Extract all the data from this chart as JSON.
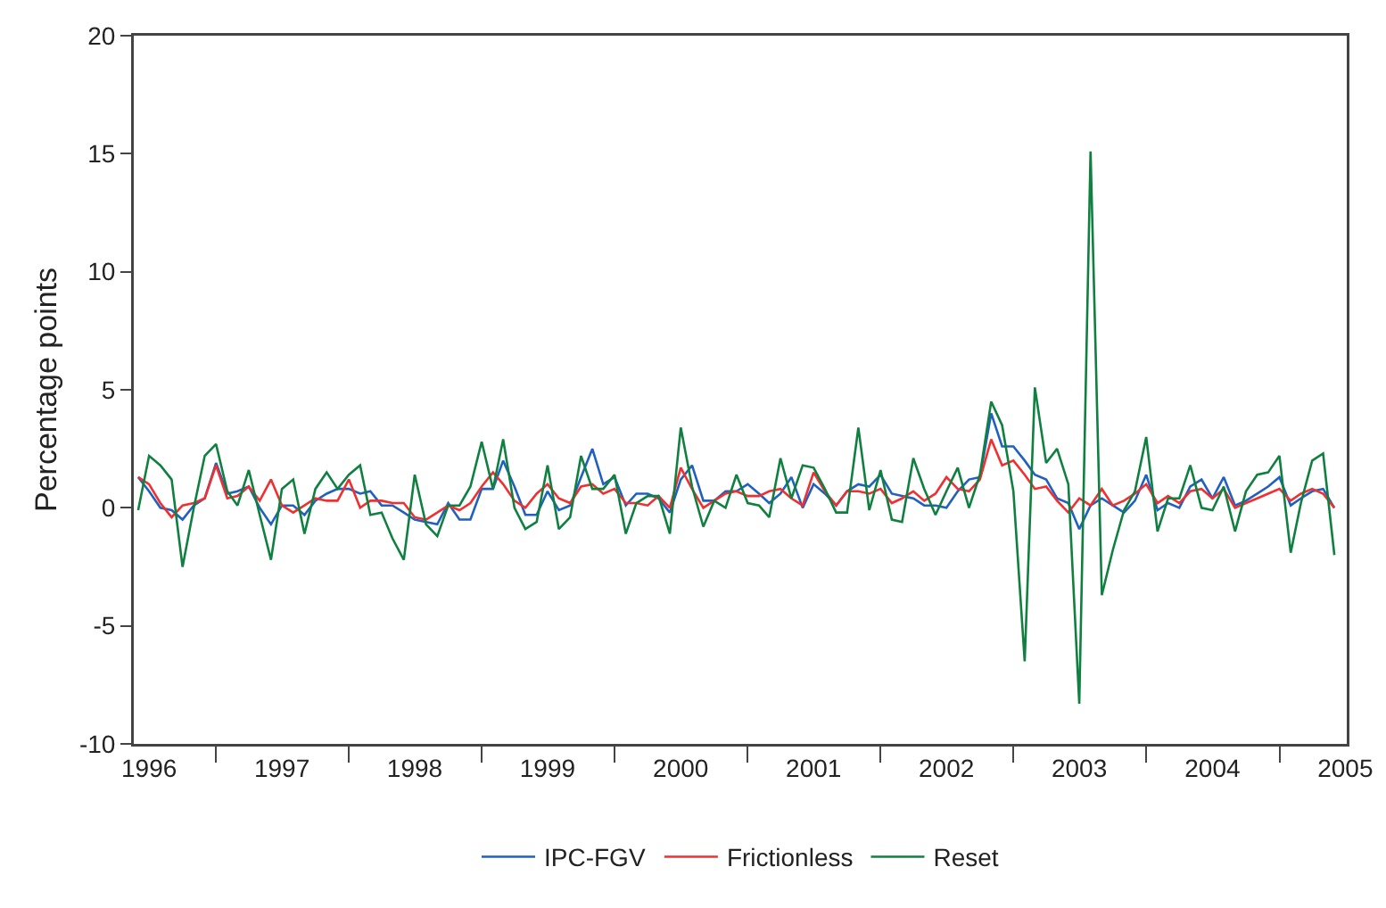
{
  "chart_data": {
    "type": "line",
    "ylabel": "Percentage points",
    "x": [
      "1996-06",
      "1996-07",
      "1996-08",
      "1996-09",
      "1996-10",
      "1996-11",
      "1996-12",
      "1997-01",
      "1997-02",
      "1997-03",
      "1997-04",
      "1997-05",
      "1997-06",
      "1997-07",
      "1997-08",
      "1997-09",
      "1997-10",
      "1997-11",
      "1997-12",
      "1998-01",
      "1998-02",
      "1998-03",
      "1998-04",
      "1998-05",
      "1998-06",
      "1998-07",
      "1998-08",
      "1998-09",
      "1998-10",
      "1998-11",
      "1998-12",
      "1999-01",
      "1999-02",
      "1999-03",
      "1999-04",
      "1999-05",
      "1999-06",
      "1999-07",
      "1999-08",
      "1999-09",
      "1999-10",
      "1999-11",
      "1999-12",
      "2000-01",
      "2000-02",
      "2000-03",
      "2000-04",
      "2000-05",
      "2000-06",
      "2000-07",
      "2000-08",
      "2000-09",
      "2000-10",
      "2000-11",
      "2000-12",
      "2001-01",
      "2001-02",
      "2001-03",
      "2001-04",
      "2001-05",
      "2001-06",
      "2001-07",
      "2001-08",
      "2001-09",
      "2001-10",
      "2001-11",
      "2001-12",
      "2002-01",
      "2002-02",
      "2002-03",
      "2002-04",
      "2002-05",
      "2002-06",
      "2002-07",
      "2002-08",
      "2002-09",
      "2002-10",
      "2002-11",
      "2002-12",
      "2003-01",
      "2003-02",
      "2003-03",
      "2003-04",
      "2003-05",
      "2003-06",
      "2003-07",
      "2003-08",
      "2003-09",
      "2003-10",
      "2003-11",
      "2003-12",
      "2004-01",
      "2004-02",
      "2004-03",
      "2004-04",
      "2004-05",
      "2004-06",
      "2004-07",
      "2004-08",
      "2004-09",
      "2004-10",
      "2004-11",
      "2004-12",
      "2005-01",
      "2005-02",
      "2005-03",
      "2005-04",
      "2005-05",
      "2005-06"
    ],
    "series": [
      {
        "name": "IPC-FGV",
        "color": "#2060c0",
        "values": [
          1.3,
          0.7,
          0,
          -0.1,
          -0.5,
          0.1,
          0.4,
          1.9,
          0.6,
          0.7,
          0.9,
          0,
          -0.7,
          0.1,
          0.1,
          -0.3,
          0.3,
          0.6,
          0.8,
          0.8,
          0.6,
          0.7,
          0.1,
          0.1,
          -0.2,
          -0.5,
          -0.6,
          -0.7,
          0.2,
          -0.5,
          -0.5,
          0.8,
          0.8,
          2.0,
          0.9,
          -0.3,
          -0.3,
          0.7,
          -0.1,
          0.1,
          1.3,
          2.5,
          1.0,
          1.3,
          0.1,
          0.6,
          0.6,
          0.4,
          -0.2,
          1.2,
          1.8,
          0.3,
          0.3,
          0.7,
          0.7,
          1.0,
          0.6,
          0.2,
          0.6,
          1.3,
          0,
          1.0,
          0.6,
          0.1,
          0.7,
          1.0,
          0.9,
          1.4,
          0.6,
          0.5,
          0.4,
          0.1,
          0.1,
          0,
          0.7,
          1.2,
          1.3,
          4.0,
          2.6,
          2.6,
          2.0,
          1.4,
          1.2,
          0.4,
          0.2,
          -0.9,
          0.1,
          0.4,
          0.1,
          -0.2,
          0.3,
          1.4,
          -0.1,
          0.2,
          0,
          0.9,
          1.2,
          0.4,
          1.3,
          0.1,
          0.3,
          0.6,
          0.9,
          1.3,
          0.1,
          0.4,
          0.7,
          0.8,
          0
        ]
      },
      {
        "name": "Frictionless",
        "color": "#f03030",
        "values": [
          1.3,
          1.0,
          0.2,
          -0.4,
          0.1,
          0.2,
          0.4,
          1.8,
          0.4,
          0.5,
          0.9,
          0.3,
          1.2,
          0.1,
          -0.2,
          0.1,
          0.4,
          0.3,
          0.3,
          1.2,
          0,
          0.3,
          0.3,
          0.2,
          0.2,
          -0.4,
          -0.5,
          -0.2,
          0.1,
          -0.1,
          0.2,
          0.9,
          1.5,
          1.0,
          0.3,
          0,
          0.6,
          1.0,
          0.4,
          0.2,
          0.9,
          1.0,
          0.6,
          0.8,
          0.2,
          0.2,
          0.1,
          0.5,
          0,
          1.7,
          0.8,
          0,
          0.3,
          0.6,
          0.7,
          0.5,
          0.5,
          0.7,
          0.8,
          0.4,
          0.1,
          1.5,
          0.7,
          0.1,
          0.7,
          0.7,
          0.6,
          0.8,
          0.2,
          0.4,
          0.7,
          0.3,
          0.6,
          1.3,
          0.8,
          0.7,
          1.2,
          2.9,
          1.8,
          2.0,
          1.4,
          0.8,
          0.9,
          0.3,
          -0.2,
          0.4,
          0.1,
          0.8,
          0.1,
          0.3,
          0.6,
          1.0,
          0.2,
          0.5,
          0.2,
          0.7,
          0.8,
          0.4,
          0.8,
          0,
          0.2,
          0.4,
          0.6,
          0.8,
          0.3,
          0.6,
          0.8,
          0.6,
          0
        ]
      },
      {
        "name": "Reset",
        "color": "#108040",
        "values": [
          -0.1,
          2.2,
          1.8,
          1.2,
          -2.5,
          0,
          2.2,
          2.7,
          0.7,
          0.1,
          1.6,
          -0.3,
          -2.2,
          0.8,
          1.2,
          -1.1,
          0.8,
          1.5,
          0.8,
          1.4,
          1.8,
          -0.3,
          -0.2,
          -1.3,
          -2.2,
          1.4,
          -0.7,
          -1.2,
          0.1,
          0.1,
          0.9,
          2.8,
          0.8,
          2.9,
          0,
          -0.9,
          -0.6,
          1.8,
          -0.9,
          -0.4,
          2.2,
          0.8,
          0.8,
          1.4,
          -1.1,
          0.2,
          0.5,
          0.5,
          -1.1,
          3.4,
          0.9,
          -0.8,
          0.3,
          0,
          1.4,
          0.2,
          0.1,
          -0.4,
          2.1,
          0.4,
          1.8,
          1.7,
          0.8,
          -0.2,
          -0.2,
          3.4,
          -0.1,
          1.6,
          -0.5,
          -0.6,
          2.1,
          0.8,
          -0.3,
          0.7,
          1.7,
          0,
          1.4,
          4.5,
          3.5,
          0.7,
          -6.5,
          5.1,
          1.9,
          2.5,
          1.0,
          -8.3,
          15.1,
          -3.7,
          -1.8,
          -0.1,
          0.7,
          3.0,
          -1.0,
          0.4,
          0.4,
          1.8,
          0,
          -0.1,
          0.9,
          -1.0,
          0.7,
          1.4,
          1.5,
          2.2,
          -1.9,
          0.2,
          2.0,
          2.3,
          -2.0
        ]
      }
    ],
    "xlim": [
      "1996-05-20",
      "2005-07-05"
    ],
    "xticks": [
      {
        "value": "1996-07-01",
        "label": "1996"
      },
      {
        "value": "1997-01-01",
        "label": null
      },
      {
        "value": "1997-07-01",
        "label": "1997"
      },
      {
        "value": "1998-01-01",
        "label": null
      },
      {
        "value": "1998-07-01",
        "label": "1998"
      },
      {
        "value": "1999-01-01",
        "label": null
      },
      {
        "value": "1999-07-01",
        "label": "1999"
      },
      {
        "value": "2000-01-01",
        "label": null
      },
      {
        "value": "2000-07-01",
        "label": "2000"
      },
      {
        "value": "2001-01-01",
        "label": null
      },
      {
        "value": "2001-07-01",
        "label": "2001"
      },
      {
        "value": "2002-01-01",
        "label": null
      },
      {
        "value": "2002-07-01",
        "label": "2002"
      },
      {
        "value": "2003-01-01",
        "label": null
      },
      {
        "value": "2003-07-01",
        "label": "2003"
      },
      {
        "value": "2004-01-01",
        "label": null
      },
      {
        "value": "2004-07-01",
        "label": "2004"
      },
      {
        "value": "2005-01-01",
        "label": null
      },
      {
        "value": "2005-07-01",
        "label": "2005"
      }
    ],
    "ylim": [
      -10,
      20
    ],
    "yticks": [
      -10,
      -5,
      0,
      5,
      10,
      15,
      20
    ],
    "grid": false,
    "legend": "bottom",
    "marker": "none",
    "line_style": "solid"
  }
}
